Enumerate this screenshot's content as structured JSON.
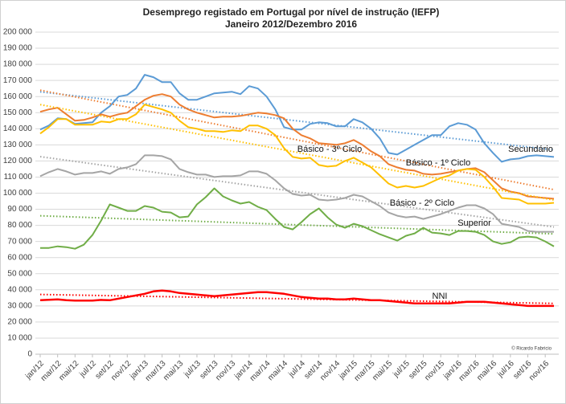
{
  "chart_data": {
    "type": "line",
    "title": "Desemprego registado em Portugal por nível de instrução (IEFP)",
    "subtitle": "Janeiro 2012/Dezembro 2016",
    "annotations": [
      "© Ricardo Fabricio"
    ],
    "trendline": true,
    "grid": true,
    "categories": [
      "jan/12",
      null,
      "mar/12",
      null,
      "mai/12",
      null,
      "jul/12",
      null,
      "set/12",
      null,
      "nov/12",
      null,
      "jan/13",
      null,
      "mar/13",
      null,
      "mai/13",
      null,
      "jul/13",
      null,
      "set/13",
      null,
      "nov/13",
      null,
      "jan/14",
      null,
      "mar/14",
      null,
      "mai/14",
      null,
      "jul/14",
      null,
      "set/14",
      null,
      "nov/14",
      null,
      "jan/15",
      null,
      "mar/15",
      null,
      "mai/15",
      null,
      "jul/15",
      null,
      "set/15",
      null,
      "nov/15",
      null,
      "jan/16",
      null,
      "mar/16",
      null,
      "mai/16",
      null,
      "jul/16",
      null,
      "set/16",
      null,
      "nov/16",
      null
    ],
    "ylim": [
      0,
      200000
    ],
    "yticks": [
      0,
      {
        "value": 10000,
        "label": "10 000"
      },
      {
        "value": 20000,
        "label": "20 000"
      },
      {
        "value": 30000,
        "label": "30 000"
      },
      {
        "value": 40000,
        "label": "40 000"
      },
      {
        "value": 50000,
        "label": "50 000"
      },
      {
        "value": 60000,
        "label": "60 000"
      },
      {
        "value": 70000,
        "label": "70 000"
      },
      {
        "value": 80000,
        "label": "80 000"
      },
      {
        "value": 90000,
        "label": "90 000"
      },
      {
        "value": 100000,
        "label": "100 000"
      },
      {
        "value": 110000,
        "label": "110 000"
      },
      {
        "value": 120000,
        "label": "120 000"
      },
      {
        "value": 130000,
        "label": "130 000"
      },
      {
        "value": 140000,
        "label": "140 000"
      },
      {
        "value": 150000,
        "label": "150 000"
      },
      {
        "value": 160000,
        "label": "160 000"
      },
      {
        "value": 170000,
        "label": "170 000"
      },
      {
        "value": 180000,
        "label": "180 000"
      },
      {
        "value": 190000,
        "label": "190 000"
      },
      {
        "value": 200000,
        "label": "200 000"
      }
    ],
    "series": [
      {
        "name": "Secundário",
        "color": "#5b9bd5",
        "values": [
          139500,
          142000,
          146500,
          146000,
          143000,
          143500,
          144000,
          150000,
          154000,
          160000,
          161000,
          165000,
          173500,
          172000,
          169000,
          169000,
          162000,
          158000,
          158000,
          160000,
          162000,
          162500,
          163000,
          161500,
          166500,
          165000,
          160000,
          152000,
          141000,
          139500,
          139500,
          143000,
          144000,
          143500,
          141500,
          141500,
          146000,
          144000,
          140000,
          134000,
          125000,
          124000,
          127000,
          130000,
          133000,
          136000,
          136000,
          141500,
          143500,
          142500,
          139500,
          131000,
          125000,
          119500,
          121000,
          121500,
          123000,
          123500,
          123000,
          122500
        ]
      },
      {
        "name": "Básico - 1º Ciclo",
        "color": "#ed7d31",
        "values": [
          150500,
          152000,
          153000,
          149000,
          145000,
          145500,
          147000,
          149000,
          147500,
          149000,
          150000,
          154000,
          158000,
          160500,
          161500,
          160000,
          155000,
          152000,
          150000,
          148500,
          147000,
          147500,
          147500,
          148000,
          149000,
          150000,
          149500,
          148500,
          146500,
          140000,
          136000,
          134000,
          131000,
          130500,
          130000,
          131000,
          133000,
          130000,
          126000,
          123000,
          118000,
          116000,
          114500,
          114000,
          112000,
          111500,
          112000,
          113000,
          114000,
          115000,
          115500,
          113000,
          108000,
          103000,
          101000,
          100000,
          98000,
          97500,
          97000,
          96500
        ]
      },
      {
        "name": "Básico - 3º Ciclo",
        "color": "#ffc000",
        "values": [
          137000,
          141000,
          146000,
          146000,
          142500,
          142500,
          142500,
          144500,
          144000,
          146000,
          146000,
          149000,
          155000,
          153500,
          152000,
          150000,
          145000,
          141000,
          140000,
          138500,
          138500,
          138000,
          139000,
          138500,
          142000,
          142000,
          140000,
          136000,
          128000,
          122500,
          121500,
          122000,
          117500,
          116500,
          117000,
          120000,
          122000,
          119000,
          116000,
          111000,
          106000,
          103500,
          104500,
          103500,
          104500,
          107000,
          109500,
          111000,
          114000,
          115000,
          114500,
          110000,
          104000,
          97000,
          96500,
          96000,
          93500,
          93500,
          93500,
          94000
        ]
      },
      {
        "name": "Básico - 2º Ciclo",
        "color": "#a5a5a5",
        "values": [
          110500,
          113000,
          115000,
          113500,
          111500,
          112500,
          112500,
          113500,
          112000,
          115000,
          116000,
          118000,
          123500,
          123500,
          123000,
          121000,
          115000,
          113000,
          111500,
          111500,
          110000,
          110500,
          110500,
          111000,
          113500,
          113500,
          112000,
          108000,
          103000,
          99500,
          98500,
          99000,
          96000,
          95500,
          96000,
          97000,
          99000,
          98000,
          95000,
          92000,
          88000,
          86000,
          85000,
          85500,
          84000,
          85500,
          87000,
          89000,
          91000,
          92500,
          92500,
          90500,
          87000,
          81000,
          80000,
          79000,
          76500,
          76000,
          76000,
          76000
        ]
      },
      {
        "name": "Superior",
        "color": "#70ad47",
        "values": [
          66000,
          66000,
          67000,
          66500,
          65500,
          68000,
          74000,
          83000,
          93000,
          91000,
          89000,
          89000,
          92000,
          91000,
          88500,
          88000,
          85000,
          85500,
          93000,
          97500,
          103000,
          98000,
          95500,
          93500,
          94500,
          91500,
          89500,
          84000,
          79000,
          77500,
          82000,
          87000,
          90500,
          85000,
          80500,
          78500,
          81000,
          79500,
          77000,
          74500,
          72500,
          70500,
          73500,
          75000,
          78500,
          75500,
          75000,
          74000,
          76500,
          76500,
          76000,
          74000,
          70000,
          68500,
          69500,
          72500,
          73000,
          72500,
          70000,
          67000
        ]
      },
      {
        "name": "NNI",
        "color": "#ff0000",
        "values": [
          33500,
          33800,
          34000,
          33500,
          33300,
          33300,
          33300,
          33700,
          33500,
          34500,
          35500,
          36500,
          37500,
          39000,
          39500,
          39000,
          38000,
          37500,
          37000,
          36500,
          36000,
          36500,
          37000,
          37500,
          38000,
          38500,
          38500,
          38000,
          37500,
          36500,
          35500,
          35000,
          34500,
          34500,
          34000,
          34000,
          34500,
          34000,
          33500,
          33500,
          33000,
          32500,
          32000,
          31500,
          31500,
          31500,
          31500,
          31500,
          32000,
          32500,
          32500,
          32500,
          32000,
          31500,
          31000,
          30500,
          30000,
          30000,
          30000,
          30000
        ]
      }
    ]
  }
}
